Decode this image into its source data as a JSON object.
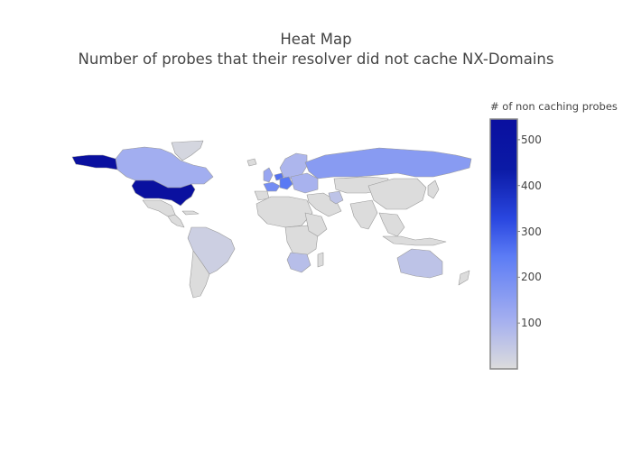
{
  "title": {
    "line1": "Heat Map",
    "line2": "Number of probes that their resolver did not cache NX-Domains"
  },
  "colorbar": {
    "title": "# of non caching probes",
    "ticks": [
      100,
      200,
      300,
      400,
      500
    ],
    "range": [
      0,
      545
    ],
    "colorscale": [
      "#dcdcdc",
      "#a3aef0",
      "#5c7cf5",
      "#2a47e0",
      "#0b1aa6",
      "#0a0f9f"
    ]
  },
  "colors": {
    "border": "#9a9a9a",
    "outline": "#888888"
  },
  "chart_data": {
    "type": "choropleth",
    "projection": "equirectangular",
    "z_label": "# of non caching probes",
    "series": [
      {
        "region": "United States",
        "value": 540
      },
      {
        "region": "Alaska",
        "value": 540
      },
      {
        "region": "Canada",
        "value": 110
      },
      {
        "region": "Russia",
        "value": 160
      },
      {
        "region": "Germany",
        "value": 250
      },
      {
        "region": "Netherlands",
        "value": 260
      },
      {
        "region": "France",
        "value": 200
      },
      {
        "region": "United Kingdom",
        "value": 130
      },
      {
        "region": "Scandinavia",
        "value": 90
      },
      {
        "region": "Eastern Europe",
        "value": 100
      },
      {
        "region": "Iran",
        "value": 60
      },
      {
        "region": "Australia",
        "value": 60
      },
      {
        "region": "South Africa",
        "value": 70
      },
      {
        "region": "Brazil",
        "value": 30
      },
      {
        "region": "Greenland",
        "value": 15
      }
    ]
  }
}
